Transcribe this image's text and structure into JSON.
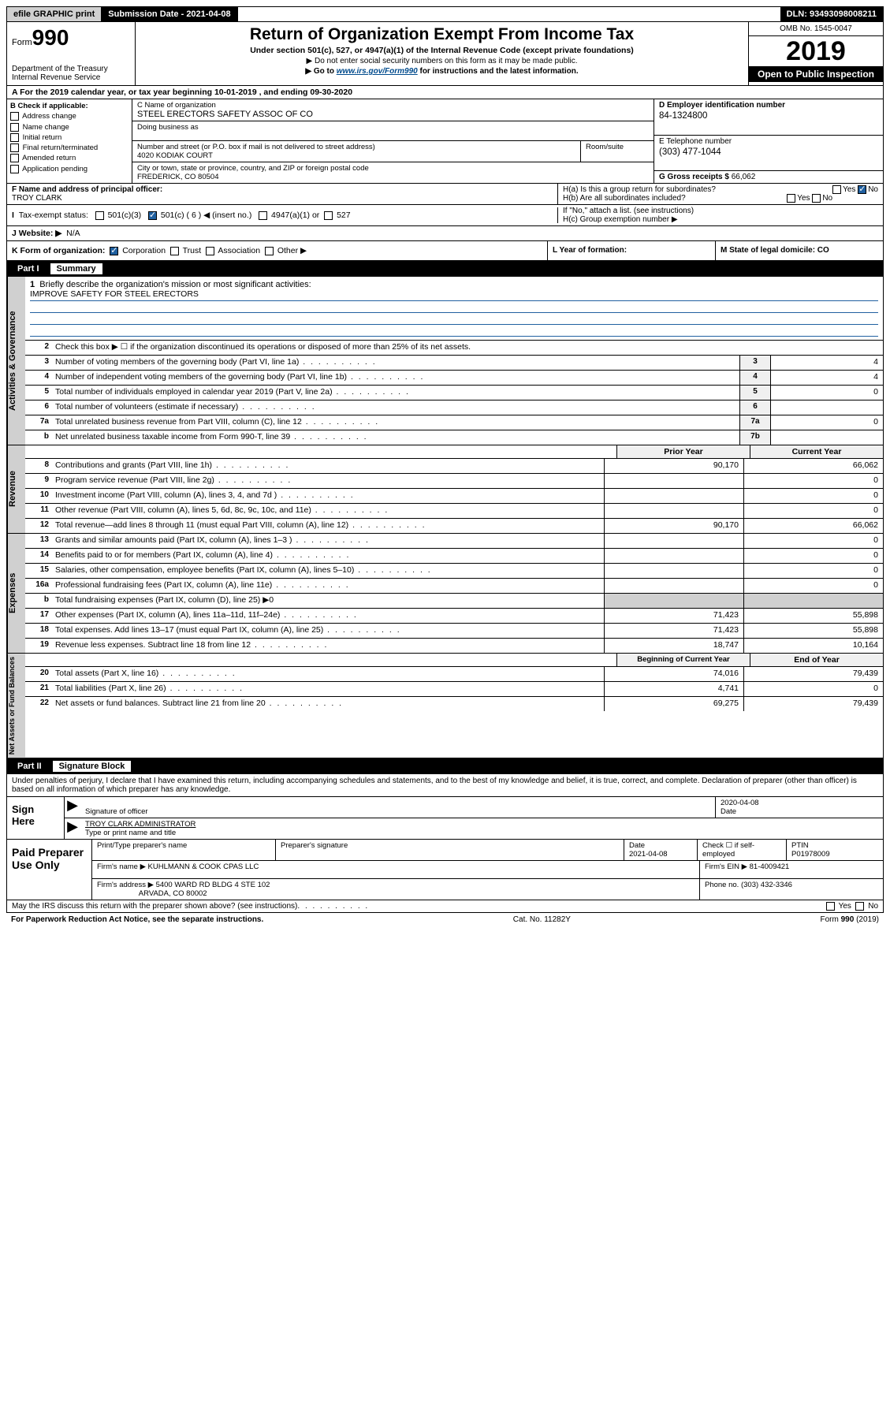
{
  "top_bar": {
    "efile": "efile GRAPHIC print",
    "submission": "Submission Date - 2021-04-08",
    "dln": "DLN: 93493098008211"
  },
  "header": {
    "form_prefix": "Form",
    "form_num": "990",
    "dept": "Department of the Treasury\nInternal Revenue Service",
    "title": "Return of Organization Exempt From Income Tax",
    "subtitle": "Under section 501(c), 527, or 4947(a)(1) of the Internal Revenue Code (except private foundations)",
    "note1": "▶ Do not enter social security numbers on this form as it may be made public.",
    "note2_pre": "▶ Go to ",
    "note2_link": "www.irs.gov/Form990",
    "note2_post": " for instructions and the latest information.",
    "omb": "OMB No. 1545-0047",
    "year": "2019",
    "open": "Open to Public Inspection"
  },
  "rowA": "For the 2019 calendar year, or tax year beginning 10-01-2019   , and ending 09-30-2020",
  "colB": {
    "label": "B Check if applicable:",
    "items": [
      "Address change",
      "Name change",
      "Initial return",
      "Final return/terminated",
      "Amended return",
      "Application pending"
    ]
  },
  "colC": {
    "name_label": "C Name of organization",
    "name": "STEEL ERECTORS SAFETY ASSOC OF CO",
    "dba_label": "Doing business as",
    "addr_label": "Number and street (or P.O. box if mail is not delivered to street address)",
    "addr": "4020 KODIAK COURT",
    "suite_label": "Room/suite",
    "city_label": "City or town, state or province, country, and ZIP or foreign postal code",
    "city": "FREDERICK, CO  80504"
  },
  "colD": {
    "label": "D Employer identification number",
    "val": "84-1324800"
  },
  "colE": {
    "label": "E Telephone number",
    "val": "(303) 477-1044"
  },
  "colG": {
    "label": "G Gross receipts $",
    "val": "66,062"
  },
  "colF": {
    "label": "F  Name and address of principal officer:",
    "val": "TROY CLARK"
  },
  "colH": {
    "ha": "H(a)  Is this a group return for subordinates?",
    "hb": "H(b)  Are all subordinates included?",
    "hb_note": "If \"No,\" attach a list. (see instructions)",
    "hc": "H(c)  Group exemption number ▶"
  },
  "tax_status": {
    "label": "Tax-exempt status:",
    "opts": [
      "501(c)(3)",
      "501(c) ( 6 ) ◀ (insert no.)",
      "4947(a)(1) or",
      "527"
    ]
  },
  "rowJ": {
    "label": "J   Website: ▶",
    "val": "N/A"
  },
  "rowK": "K Form of organization:",
  "rowK_opts": [
    "Corporation",
    "Trust",
    "Association",
    "Other ▶"
  ],
  "rowL": "L Year of formation:",
  "rowM": "M State of legal domicile: CO",
  "part1": {
    "label": "Part I",
    "title": "Summary"
  },
  "section_labels": {
    "gov": "Activities & Governance",
    "rev": "Revenue",
    "exp": "Expenses",
    "net": "Net Assets or Fund Balances"
  },
  "line1": {
    "text": "Briefly describe the organization's mission or most significant activities:",
    "val": "IMPROVE SAFETY FOR STEEL ERECTORS"
  },
  "line2": "Check this box ▶ ☐  if the organization discontinued its operations or disposed of more than 25% of its net assets.",
  "lines_gov": [
    {
      "n": "3",
      "t": "Number of voting members of the governing body (Part VI, line 1a)",
      "c": "3",
      "v": "4"
    },
    {
      "n": "4",
      "t": "Number of independent voting members of the governing body (Part VI, line 1b)",
      "c": "4",
      "v": "4"
    },
    {
      "n": "5",
      "t": "Total number of individuals employed in calendar year 2019 (Part V, line 2a)",
      "c": "5",
      "v": "0"
    },
    {
      "n": "6",
      "t": "Total number of volunteers (estimate if necessary)",
      "c": "6",
      "v": ""
    },
    {
      "n": "7a",
      "t": "Total unrelated business revenue from Part VIII, column (C), line 12",
      "c": "7a",
      "v": "0"
    },
    {
      "n": "b",
      "t": "Net unrelated business taxable income from Form 990-T, line 39",
      "c": "7b",
      "v": ""
    }
  ],
  "hdr_prior": "Prior Year",
  "hdr_current": "Current Year",
  "lines_rev": [
    {
      "n": "8",
      "t": "Contributions and grants (Part VIII, line 1h)",
      "p": "90,170",
      "c": "66,062"
    },
    {
      "n": "9",
      "t": "Program service revenue (Part VIII, line 2g)",
      "p": "",
      "c": "0"
    },
    {
      "n": "10",
      "t": "Investment income (Part VIII, column (A), lines 3, 4, and 7d )",
      "p": "",
      "c": "0"
    },
    {
      "n": "11",
      "t": "Other revenue (Part VIII, column (A), lines 5, 6d, 8c, 9c, 10c, and 11e)",
      "p": "",
      "c": "0"
    },
    {
      "n": "12",
      "t": "Total revenue—add lines 8 through 11 (must equal Part VIII, column (A), line 12)",
      "p": "90,170",
      "c": "66,062"
    }
  ],
  "lines_exp": [
    {
      "n": "13",
      "t": "Grants and similar amounts paid (Part IX, column (A), lines 1–3 )",
      "p": "",
      "c": "0"
    },
    {
      "n": "14",
      "t": "Benefits paid to or for members (Part IX, column (A), line 4)",
      "p": "",
      "c": "0"
    },
    {
      "n": "15",
      "t": "Salaries, other compensation, employee benefits (Part IX, column (A), lines 5–10)",
      "p": "",
      "c": "0"
    },
    {
      "n": "16a",
      "t": "Professional fundraising fees (Part IX, column (A), line 11e)",
      "p": "",
      "c": "0"
    },
    {
      "n": "b",
      "t": "Total fundraising expenses (Part IX, column (D), line 25) ▶0",
      "gray": true
    },
    {
      "n": "17",
      "t": "Other expenses (Part IX, column (A), lines 11a–11d, 11f–24e)",
      "p": "71,423",
      "c": "55,898"
    },
    {
      "n": "18",
      "t": "Total expenses. Add lines 13–17 (must equal Part IX, column (A), line 25)",
      "p": "71,423",
      "c": "55,898"
    },
    {
      "n": "19",
      "t": "Revenue less expenses. Subtract line 18 from line 12",
      "p": "18,747",
      "c": "10,164"
    }
  ],
  "hdr_begin": "Beginning of Current Year",
  "hdr_end": "End of Year",
  "lines_net": [
    {
      "n": "20",
      "t": "Total assets (Part X, line 16)",
      "p": "74,016",
      "c": "79,439"
    },
    {
      "n": "21",
      "t": "Total liabilities (Part X, line 26)",
      "p": "4,741",
      "c": "0"
    },
    {
      "n": "22",
      "t": "Net assets or fund balances. Subtract line 21 from line 20",
      "p": "69,275",
      "c": "79,439"
    }
  ],
  "part2": {
    "label": "Part II",
    "title": "Signature Block"
  },
  "declaration": "Under penalties of perjury, I declare that I have examined this return, including accompanying schedules and statements, and to the best of my knowledge and belief, it is true, correct, and complete. Declaration of preparer (other than officer) is based on all information of which preparer has any knowledge.",
  "sign": {
    "here": "Sign Here",
    "sig_label": "Signature of officer",
    "date": "2020-04-08",
    "date_label": "Date",
    "name": "TROY CLARK  ADMINISTRATOR",
    "name_label": "Type or print name and title"
  },
  "paid": {
    "left": "Paid Preparer Use Only",
    "h1": "Print/Type preparer's name",
    "h2": "Preparer's signature",
    "h3": "Date",
    "date": "2021-04-08",
    "h4": "Check ☐ if self-employed",
    "h5": "PTIN",
    "ptin": "P01978009",
    "firm_label": "Firm's name    ▶",
    "firm": "KUHLMANN & COOK CPAS LLC",
    "ein_label": "Firm's EIN ▶",
    "ein": "81-4009421",
    "addr_label": "Firm's address ▶",
    "addr1": "5400 WARD RD BLDG 4 STE 102",
    "addr2": "ARVADA, CO  80002",
    "phone_label": "Phone no.",
    "phone": "(303) 432-3346"
  },
  "discuss": "May the IRS discuss this return with the preparer shown above? (see instructions)",
  "footer": {
    "pra": "For Paperwork Reduction Act Notice, see the separate instructions.",
    "cat": "Cat. No. 11282Y",
    "form": "Form 990 (2019)"
  }
}
